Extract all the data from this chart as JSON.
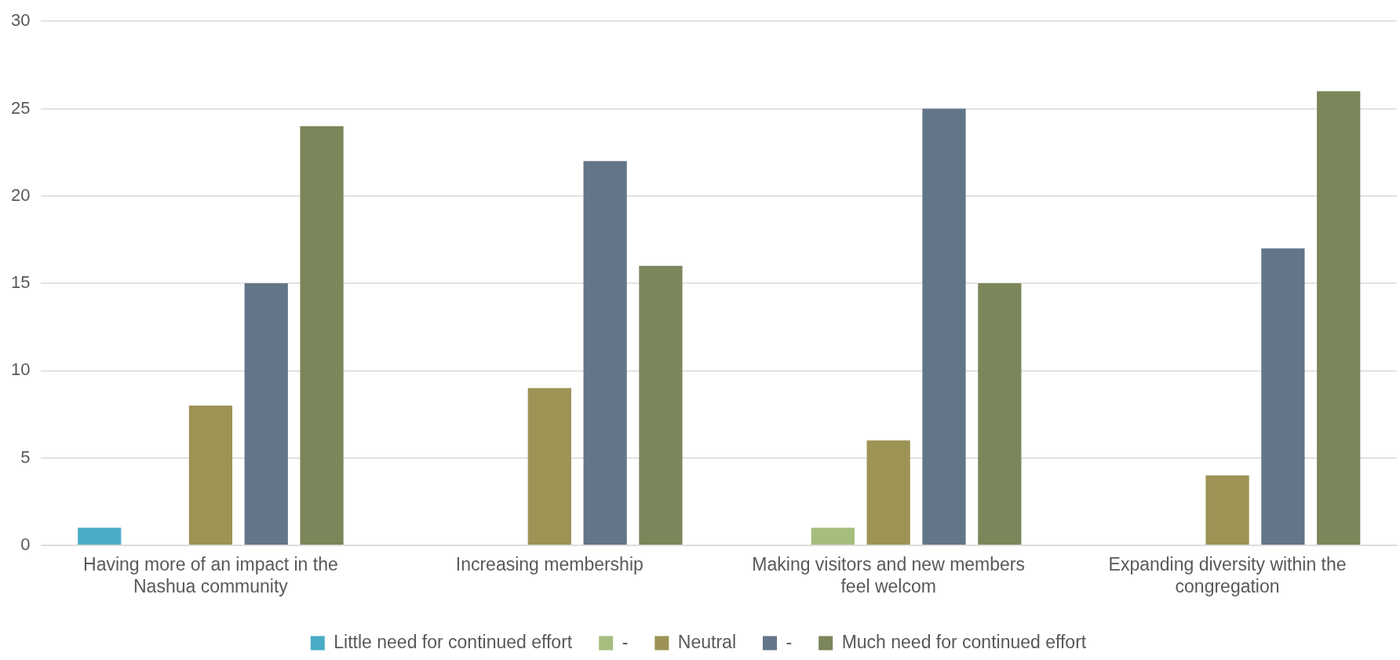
{
  "chart_data": {
    "type": "bar",
    "categories": [
      "Having more of an impact in the Nashua community",
      "Increasing membership",
      "Making visitors and new members feel welcom",
      "Expanding diversity within the congregation"
    ],
    "series": [
      {
        "name": "Little need for continued effort",
        "color": "#4bacc6",
        "values": [
          1,
          0,
          0,
          0
        ]
      },
      {
        "name": "-",
        "color": "#a5bd7e",
        "values": [
          0,
          0,
          1,
          0
        ]
      },
      {
        "name": "Neutral",
        "color": "#9c9355",
        "values": [
          8,
          9,
          6,
          4
        ]
      },
      {
        "name": "-",
        "color": "#637588",
        "values": [
          15,
          22,
          25,
          17
        ]
      },
      {
        "name": "Much need for continued effort",
        "color": "#7b865a",
        "values": [
          24,
          16,
          15,
          26
        ]
      }
    ],
    "ylim": [
      0,
      30
    ],
    "yticks": [
      0,
      5,
      10,
      15,
      20,
      25,
      30
    ],
    "grid": "y",
    "legend": "bottom"
  }
}
